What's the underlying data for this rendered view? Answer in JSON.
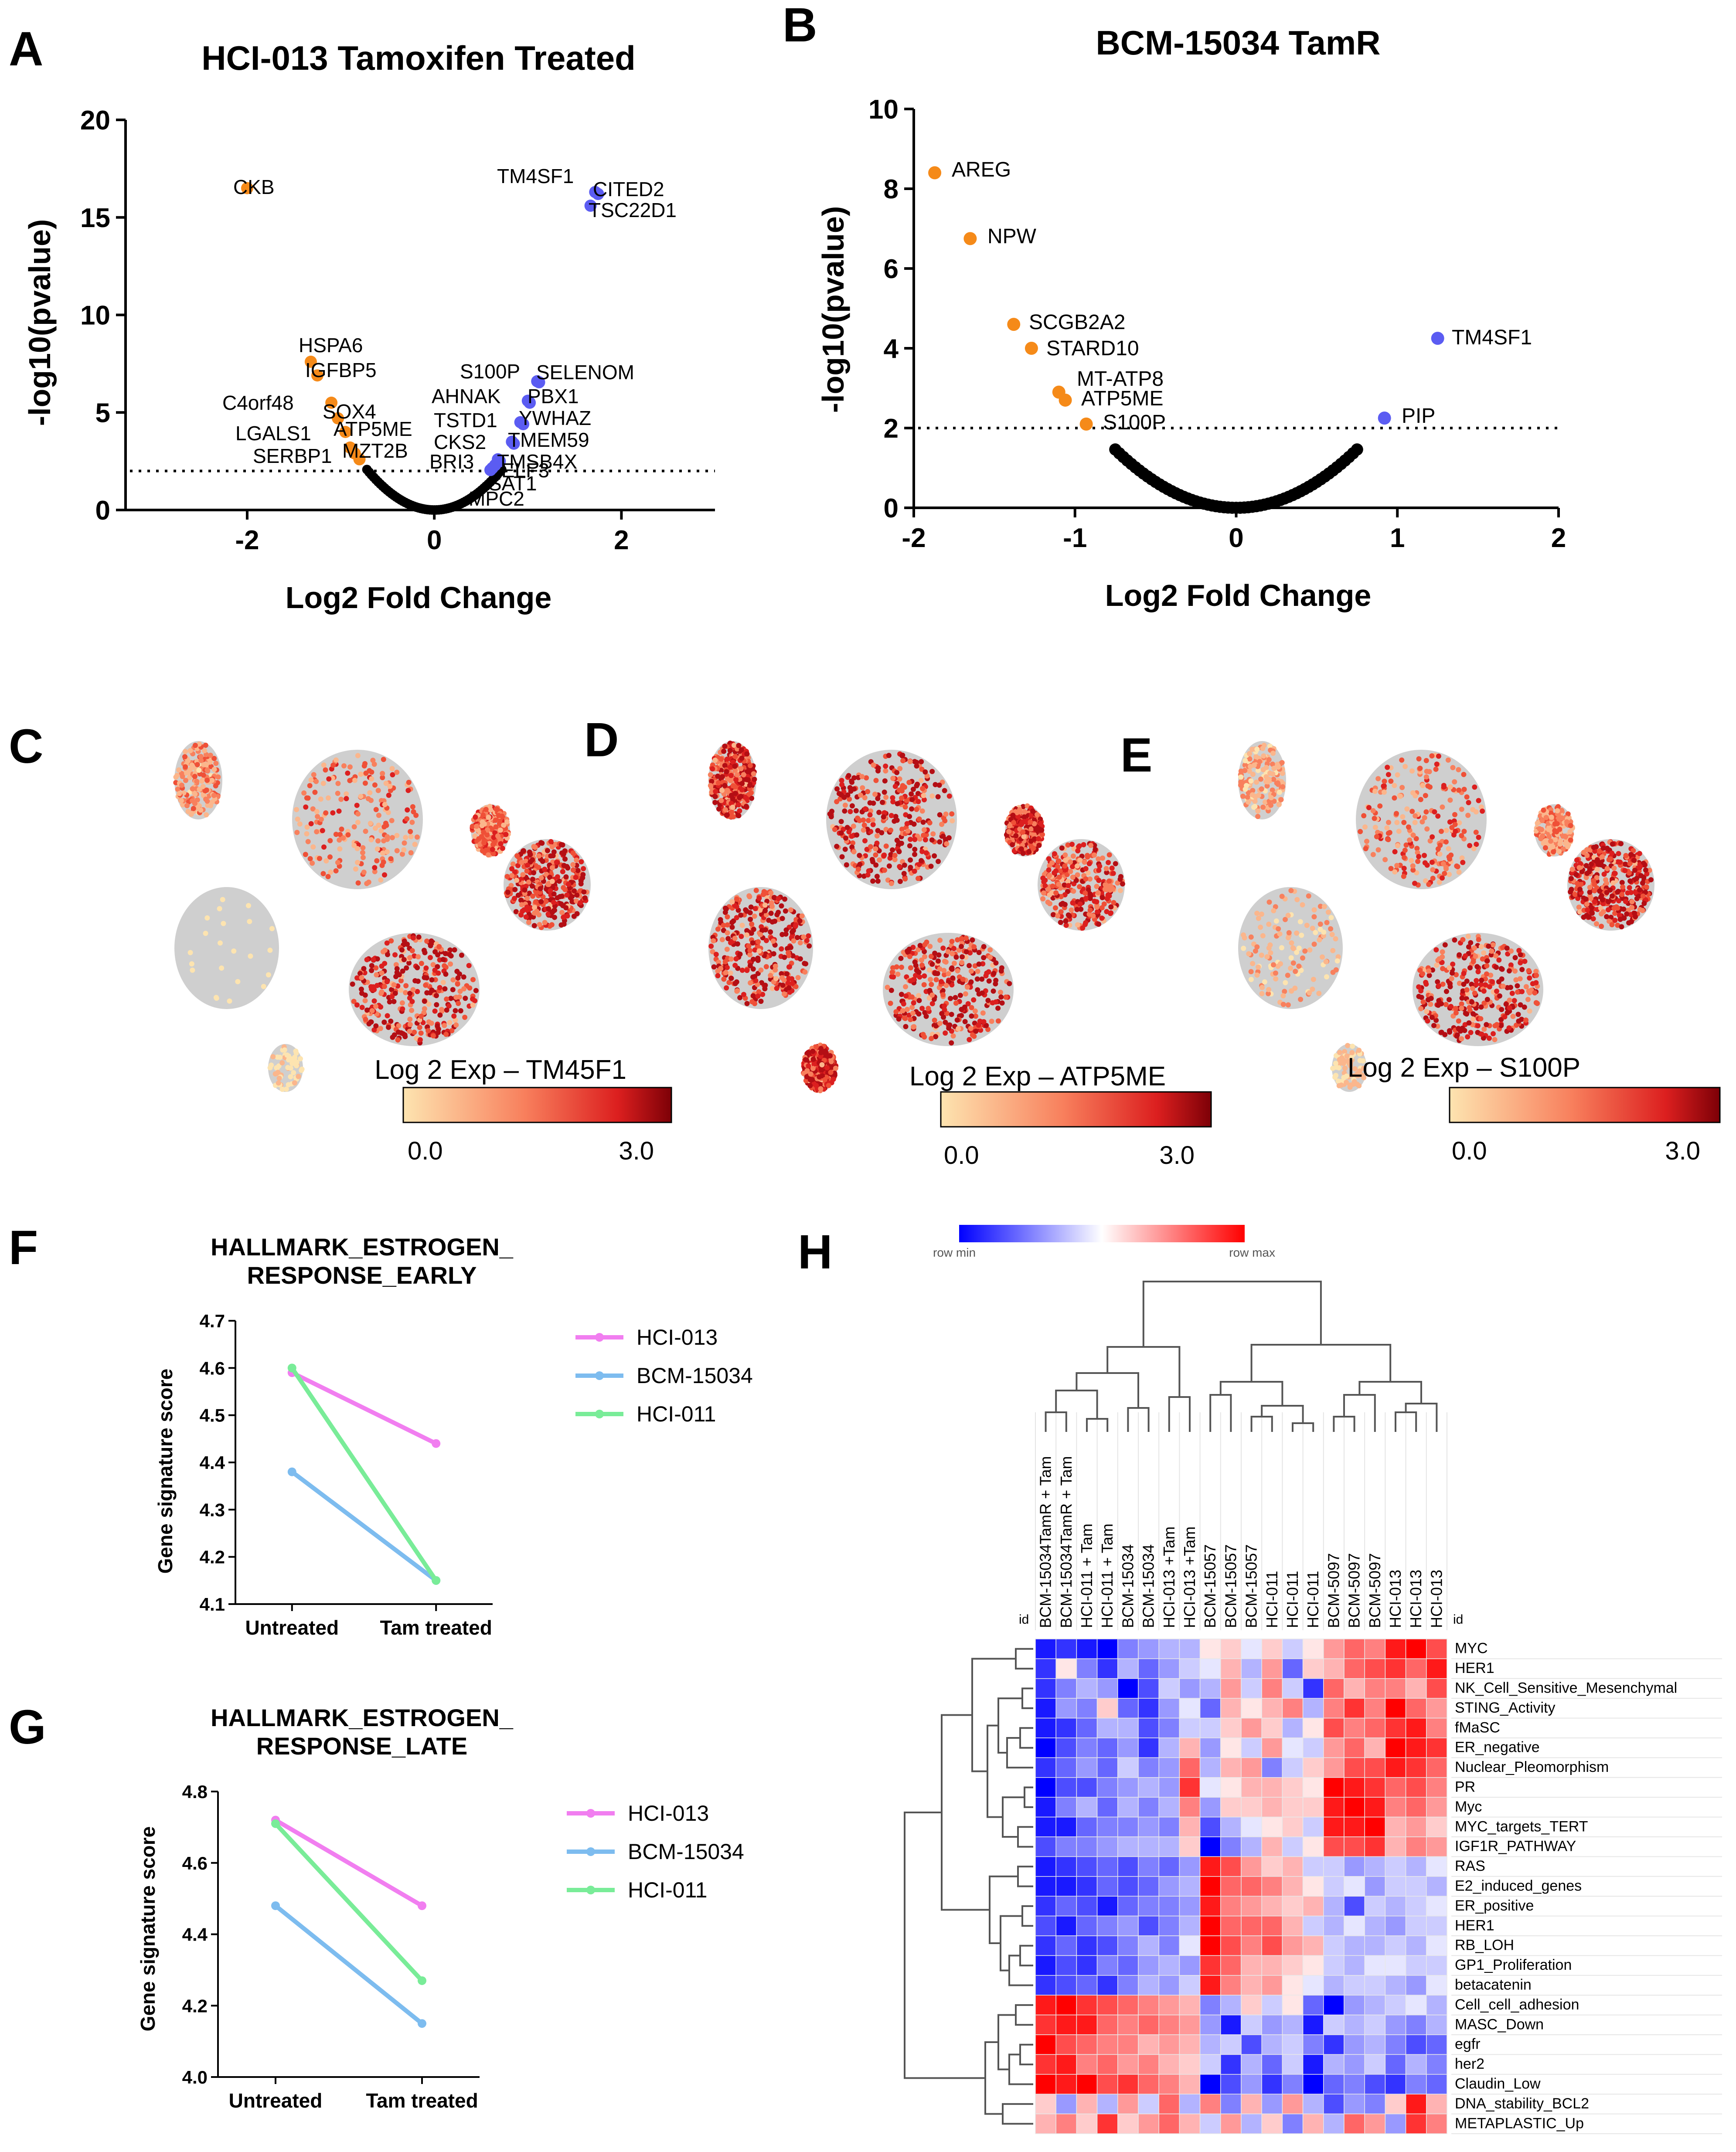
{
  "panels": {
    "A": {
      "letter": "A",
      "title": "HCI-013 Tamoxifen Treated",
      "xlabel": "Log2 Fold Change",
      "ylabel": "-log10(pvalue)",
      "xticks": [
        -2,
        0,
        2
      ],
      "yticks": [
        0,
        5,
        10,
        15,
        20
      ],
      "xlim": [
        -3.3,
        3.0
      ],
      "ylim": [
        0,
        20
      ],
      "threshold": 2,
      "labeled_points": [
        {
          "label": "CKB",
          "x": -2.0,
          "y": 16.5,
          "group": "down"
        },
        {
          "label": "HSPA6",
          "x": -1.32,
          "y": 7.6,
          "group": "down"
        },
        {
          "label": "IGFBP5",
          "x": -1.25,
          "y": 6.9,
          "group": "down"
        },
        {
          "label": "C4orf48",
          "x": -1.1,
          "y": 5.5,
          "group": "down"
        },
        {
          "label": "SOX4",
          "x": -1.03,
          "y": 4.7,
          "group": "down"
        },
        {
          "label": "LGALS1",
          "x": -0.95,
          "y": 4.0,
          "group": "down"
        },
        {
          "label": "ATP5ME",
          "x": -0.9,
          "y": 3.2,
          "group": "down"
        },
        {
          "label": "MZT2B",
          "x": -0.85,
          "y": 2.9,
          "group": "down"
        },
        {
          "label": "SERBP1",
          "x": -0.8,
          "y": 2.6,
          "group": "down"
        },
        {
          "label": "TM4SF1",
          "x": 1.72,
          "y": 16.3,
          "group": "up"
        },
        {
          "label": "CITED2",
          "x": 1.75,
          "y": 16.2,
          "group": "up"
        },
        {
          "label": "TSC22D1",
          "x": 1.67,
          "y": 15.6,
          "group": "up"
        },
        {
          "label": "S100P",
          "x": 1.1,
          "y": 6.6,
          "group": "up"
        },
        {
          "label": "SELENOM",
          "x": 1.12,
          "y": 6.55,
          "group": "up"
        },
        {
          "label": "AHNAK",
          "x": 1.0,
          "y": 5.6,
          "group": "up"
        },
        {
          "label": "PBX1",
          "x": 1.02,
          "y": 5.5,
          "group": "up"
        },
        {
          "label": "TSTD1",
          "x": 0.92,
          "y": 4.5,
          "group": "up"
        },
        {
          "label": "YWHAZ",
          "x": 0.95,
          "y": 4.4,
          "group": "up"
        },
        {
          "label": "CKS2",
          "x": 0.83,
          "y": 3.5,
          "group": "up"
        },
        {
          "label": "TMEM59",
          "x": 0.85,
          "y": 3.4,
          "group": "up"
        },
        {
          "label": "BRI3",
          "x": 0.68,
          "y": 2.6,
          "group": "up"
        },
        {
          "label": "TMSB4X",
          "x": 0.7,
          "y": 2.5,
          "group": "up"
        },
        {
          "label": "ELF3",
          "x": 0.65,
          "y": 2.3,
          "group": "up"
        },
        {
          "label": "SAT1",
          "x": 0.62,
          "y": 2.15,
          "group": "up"
        },
        {
          "label": "MPC2",
          "x": 0.6,
          "y": 2.05,
          "group": "up"
        }
      ],
      "background_halfwidth": 0.72,
      "background_curvature": 4.0
    },
    "B": {
      "letter": "B",
      "title": "BCM-15034 TamR",
      "xlabel": "Log2 Fold Change",
      "ylabel": "-log10(pvalue)",
      "xticks": [
        -2,
        -1,
        0,
        1,
        2
      ],
      "yticks": [
        0,
        2,
        4,
        6,
        8,
        10
      ],
      "xlim": [
        -2,
        2
      ],
      "ylim": [
        0,
        10
      ],
      "threshold": 2,
      "labeled_points": [
        {
          "label": "AREG",
          "x": -1.87,
          "y": 8.4,
          "group": "down"
        },
        {
          "label": "NPW",
          "x": -1.65,
          "y": 6.75,
          "group": "down"
        },
        {
          "label": "SCGB2A2",
          "x": -1.38,
          "y": 4.6,
          "group": "down"
        },
        {
          "label": "STARD10",
          "x": -1.27,
          "y": 4.0,
          "group": "down"
        },
        {
          "label": "MT-ATP8",
          "x": -1.1,
          "y": 2.9,
          "group": "down"
        },
        {
          "label": "ATP5ME",
          "x": -1.06,
          "y": 2.7,
          "group": "down"
        },
        {
          "label": "S100P",
          "x": -0.93,
          "y": 2.1,
          "group": "down"
        },
        {
          "label": "TM4SF1",
          "x": 1.25,
          "y": 4.25,
          "group": "up"
        },
        {
          "label": "PIP",
          "x": 0.92,
          "y": 2.25,
          "group": "up"
        }
      ],
      "background_halfwidth": 0.75,
      "background_curvature": 2.6
    },
    "C": {
      "letter": "C",
      "colorbar_label": "Log 2 Exp – TM45F1",
      "cb_min": "0.0",
      "cb_max": "3.0"
    },
    "D": {
      "letter": "D",
      "colorbar_label": "Log 2 Exp – ATP5ME",
      "cb_min": "0.0",
      "cb_max": "3.0"
    },
    "E": {
      "letter": "E",
      "colorbar_label": "Log 2 Exp – S100P",
      "cb_min": "0.0",
      "cb_max": "3.0"
    },
    "F": {
      "letter": "F",
      "title_line1": "HALLMARK_ESTROGEN_",
      "title_line2": "RESPONSE_EARLY",
      "ylabel": "Gene signature score",
      "categories": [
        "Untreated",
        "Tam treated"
      ],
      "yticks": [
        "4.1",
        "4.2",
        "4.3",
        "4.4",
        "4.5",
        "4.6",
        "4.7"
      ],
      "ylim": [
        4.1,
        4.7
      ],
      "series": [
        {
          "name": "HCI-013",
          "color": "#f17ef0",
          "values": [
            4.59,
            4.44
          ]
        },
        {
          "name": "BCM-15034",
          "color": "#7dbcef",
          "values": [
            4.38,
            4.15
          ]
        },
        {
          "name": "HCI-011",
          "color": "#79ec98",
          "values": [
            4.6,
            4.15
          ]
        }
      ]
    },
    "G": {
      "letter": "G",
      "title_line1": "HALLMARK_ESTROGEN_",
      "title_line2": "RESPONSE_LATE",
      "ylabel": "Gene signature score",
      "categories": [
        "Untreated",
        "Tam treated"
      ],
      "yticks": [
        "4.0",
        "4.2",
        "4.4",
        "4.6",
        "4.8"
      ],
      "ylim": [
        4.0,
        4.8
      ],
      "series": [
        {
          "name": "HCI-013",
          "color": "#f17ef0",
          "values": [
            4.72,
            4.48
          ]
        },
        {
          "name": "BCM-15034",
          "color": "#7dbcef",
          "values": [
            4.48,
            4.15
          ]
        },
        {
          "name": "HCI-011",
          "color": "#79ec98",
          "values": [
            4.71,
            4.27
          ]
        }
      ]
    },
    "H": {
      "letter": "H",
      "legend_min": "row min",
      "legend_max": "row max",
      "id_label": "id",
      "columns": [
        "BCM-15034TamR + Tam",
        "BCM-15034TamR + Tam",
        "HCI-011 + Tam",
        "HCI-011 + Tam",
        "BCM-15034",
        "BCM-15034",
        "HCI-013 +Tam",
        "HCI-013 +Tam",
        "BCM-15057",
        "BCM-15057",
        "BCM-15057",
        "HCI-011",
        "HCI-011",
        "HCI-011",
        "BCM-5097",
        "BCM-5097",
        "BCM-5097",
        "HCI-013",
        "HCI-013",
        "HCI-013"
      ],
      "rows": [
        "MYC",
        "HER1",
        "NK_Cell_Sensitive_Mesenchymal",
        "STING_Activity",
        "fMaSC",
        "ER_negative",
        "Nuclear_Pleomorphism",
        "PR",
        "Myc",
        "MYC_targets_TERT",
        "IGF1R_PATHWAY",
        "RAS",
        "E2_induced_genes",
        "ER_positive",
        "HER1",
        "RB_LOH",
        "GP1_Proliferation",
        "betacatenin",
        "Cell_cell_adhesion",
        "MASC_Down",
        "egfr",
        "her2",
        "Claudin_Low",
        "DNA_stability_BCL2",
        "METAPLASTIC_Up"
      ],
      "matrix": [
        [
          -0.9,
          -0.8,
          -0.9,
          -1.0,
          -0.5,
          -0.4,
          -0.3,
          -0.3,
          0.1,
          0.2,
          -0.1,
          0.2,
          -0.2,
          0.1,
          0.4,
          0.6,
          0.5,
          0.9,
          1.0,
          0.7
        ],
        [
          -0.8,
          0.1,
          -0.5,
          -0.8,
          -0.3,
          -0.6,
          -0.4,
          -0.2,
          -0.1,
          0.3,
          -0.3,
          0.4,
          -0.6,
          0.2,
          0.3,
          0.6,
          0.7,
          0.8,
          0.6,
          0.9
        ],
        [
          -0.8,
          -0.5,
          -0.3,
          -0.4,
          -1.0,
          -0.7,
          -0.2,
          -0.4,
          -0.3,
          0.4,
          -0.2,
          0.5,
          -0.2,
          -0.8,
          0.6,
          0.3,
          0.5,
          0.5,
          0.3,
          0.7
        ],
        [
          -0.9,
          -0.4,
          -0.5,
          0.2,
          -0.6,
          -0.8,
          -0.4,
          -0.1,
          -0.6,
          0.3,
          0.1,
          0.3,
          0.5,
          -0.3,
          0.5,
          0.8,
          0.5,
          1.0,
          0.6,
          0.4
        ],
        [
          -0.9,
          -0.8,
          -0.6,
          -0.3,
          -0.3,
          -0.7,
          -0.5,
          -0.2,
          -0.2,
          0.2,
          0.4,
          0.2,
          -0.3,
          0.1,
          0.7,
          0.5,
          0.6,
          0.8,
          0.9,
          0.5
        ],
        [
          -1.0,
          -0.7,
          -0.5,
          -0.6,
          -0.4,
          -0.8,
          -0.3,
          0.3,
          -0.4,
          0.1,
          -0.2,
          0.4,
          -0.1,
          -0.2,
          0.4,
          0.6,
          0.3,
          1.0,
          0.9,
          0.8
        ],
        [
          -0.8,
          -0.6,
          -0.4,
          -0.6,
          -0.2,
          -0.5,
          -0.4,
          0.6,
          -0.3,
          0.3,
          0.4,
          -0.5,
          -0.2,
          0.2,
          0.4,
          0.7,
          0.7,
          0.9,
          0.8,
          0.6
        ],
        [
          -1.0,
          -0.7,
          -0.7,
          -0.5,
          -0.4,
          -0.3,
          -0.4,
          0.8,
          -0.1,
          0.1,
          0.3,
          0.3,
          0.2,
          0.1,
          1.0,
          0.9,
          0.8,
          0.6,
          0.7,
          0.5
        ],
        [
          -0.9,
          -0.5,
          -0.3,
          -0.6,
          -0.3,
          -0.5,
          -0.3,
          0.5,
          -0.4,
          0.2,
          0.2,
          0.3,
          0.2,
          0.2,
          0.9,
          1.0,
          0.9,
          0.5,
          0.6,
          0.4
        ],
        [
          -0.9,
          -0.9,
          -0.6,
          -0.5,
          -0.5,
          -0.4,
          -0.5,
          0.3,
          -0.7,
          -0.3,
          -0.1,
          0.1,
          0.2,
          -0.2,
          0.9,
          0.9,
          1.0,
          0.3,
          0.4,
          0.2
        ],
        [
          -0.7,
          -0.5,
          -0.5,
          -0.4,
          -0.3,
          -0.3,
          -0.3,
          0.2,
          -1.0,
          -0.5,
          -0.3,
          0.3,
          -0.2,
          0.1,
          0.7,
          0.7,
          0.8,
          0.3,
          0.5,
          0.4
        ],
        [
          -0.9,
          -0.8,
          -0.7,
          -0.6,
          -0.7,
          -0.5,
          -0.6,
          -0.4,
          0.9,
          0.7,
          0.4,
          0.2,
          0.3,
          -0.2,
          -0.2,
          -0.4,
          -0.3,
          -0.2,
          -0.3,
          -0.1
        ],
        [
          -0.9,
          -0.9,
          -0.8,
          -0.6,
          -0.7,
          -0.6,
          -0.4,
          -0.3,
          1.0,
          0.6,
          0.6,
          0.5,
          0.3,
          0.1,
          -0.2,
          -0.1,
          -0.4,
          -0.2,
          -0.2,
          -0.3
        ],
        [
          -0.8,
          -0.6,
          -0.7,
          -0.9,
          -0.6,
          -0.5,
          -0.5,
          -0.4,
          0.9,
          0.5,
          0.4,
          0.3,
          0.2,
          0.3,
          -0.3,
          -0.7,
          -0.2,
          -0.3,
          -0.2,
          -0.1
        ],
        [
          -0.7,
          -0.9,
          -0.6,
          -0.5,
          -0.4,
          -0.7,
          -0.5,
          -0.3,
          1.0,
          0.6,
          0.6,
          0.6,
          0.3,
          -0.2,
          -0.3,
          -0.1,
          -0.3,
          -0.4,
          -0.2,
          -0.2
        ],
        [
          -0.8,
          -0.6,
          -0.8,
          -0.7,
          -0.5,
          -0.3,
          -0.5,
          -0.1,
          1.0,
          0.7,
          0.5,
          0.7,
          0.4,
          0.3,
          -0.2,
          -0.3,
          -0.3,
          -0.2,
          -0.3,
          -0.1
        ],
        [
          -0.9,
          -0.7,
          -0.8,
          -0.5,
          -0.6,
          -0.4,
          -0.3,
          -0.4,
          0.8,
          0.6,
          0.3,
          0.3,
          0.2,
          0.1,
          -0.2,
          -0.3,
          -0.1,
          -0.1,
          -0.2,
          -0.2
        ],
        [
          -0.8,
          -0.7,
          -0.6,
          -0.8,
          -0.5,
          -0.3,
          -0.4,
          -0.2,
          0.9,
          0.5,
          0.3,
          0.4,
          0.1,
          -0.1,
          -0.3,
          -0.2,
          -0.2,
          -0.3,
          -0.4,
          -0.1
        ],
        [
          0.9,
          1.0,
          0.8,
          0.7,
          0.6,
          0.5,
          0.4,
          0.3,
          -0.5,
          -0.3,
          0.2,
          -0.2,
          0.1,
          -0.6,
          -1.0,
          -0.4,
          -0.3,
          -0.2,
          -0.1,
          -0.3
        ],
        [
          0.8,
          0.9,
          0.9,
          0.6,
          0.5,
          0.6,
          0.5,
          0.4,
          -0.4,
          -0.9,
          -0.2,
          -0.4,
          -0.3,
          -0.9,
          -0.2,
          -0.3,
          -0.2,
          -0.4,
          -0.5,
          -0.3
        ],
        [
          1.0,
          0.7,
          0.6,
          0.5,
          0.5,
          0.3,
          0.4,
          0.3,
          -0.3,
          -0.2,
          -0.7,
          -0.3,
          -0.2,
          -0.5,
          -0.8,
          -0.4,
          -0.3,
          -0.5,
          -0.7,
          -0.6
        ],
        [
          0.8,
          0.9,
          0.5,
          0.6,
          0.4,
          0.5,
          0.3,
          0.2,
          -0.2,
          -0.8,
          -0.3,
          -0.6,
          -0.2,
          -0.9,
          -0.3,
          -0.4,
          -0.2,
          -0.6,
          -0.3,
          -0.5
        ],
        [
          1.0,
          0.9,
          1.0,
          0.7,
          0.8,
          0.6,
          0.5,
          0.3,
          -1.0,
          -0.7,
          -0.4,
          -0.8,
          -0.5,
          -1.0,
          -0.6,
          -0.5,
          -0.7,
          -0.8,
          -0.5,
          -0.6
        ],
        [
          0.2,
          -0.4,
          0.3,
          -0.3,
          0.4,
          -0.2,
          0.6,
          -0.3,
          0.5,
          -0.5,
          0.3,
          -0.4,
          0.4,
          -0.3,
          -0.7,
          -0.4,
          -0.5,
          0.2,
          0.9,
          0.3
        ],
        [
          0.3,
          0.5,
          0.2,
          0.8,
          0.2,
          0.4,
          0.6,
          0.3,
          -0.2,
          0.4,
          -0.3,
          0.2,
          -0.5,
          0.3,
          -0.3,
          0.6,
          0.4,
          -0.4,
          0.8,
          0.5
        ]
      ]
    }
  }
}
